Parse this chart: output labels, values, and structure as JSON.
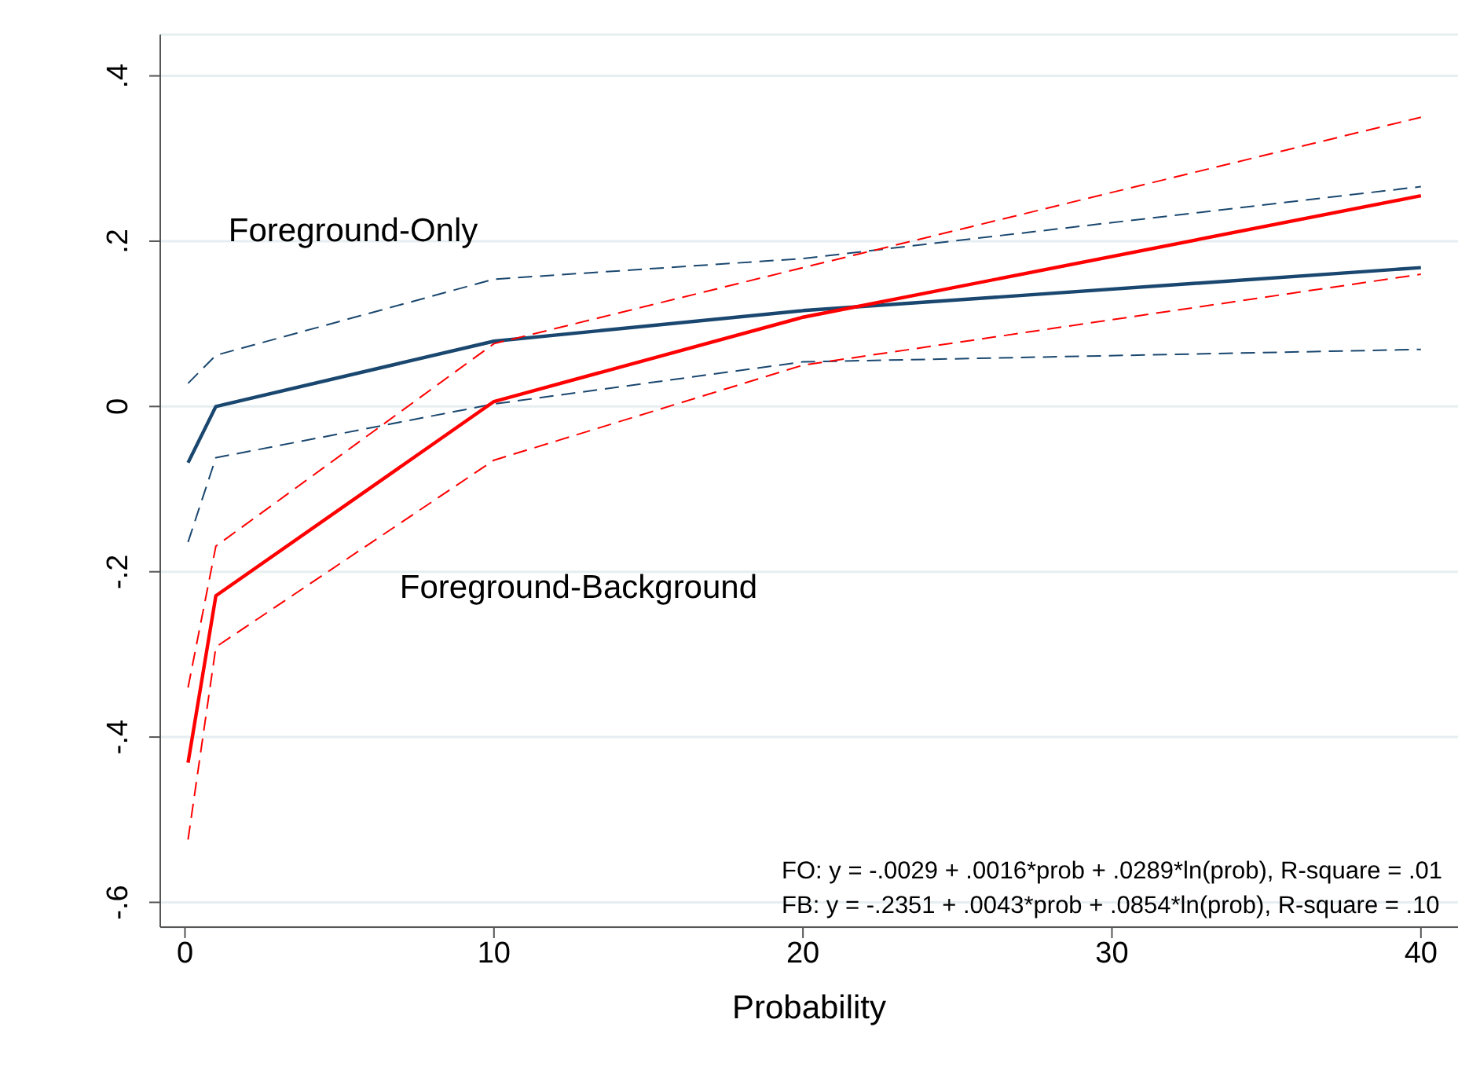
{
  "chart_data": {
    "type": "line",
    "xlabel": "Probability",
    "x": [
      0.1,
      1,
      10,
      20,
      40
    ],
    "series": [
      {
        "name": "Foreground-Only",
        "color": "#1a476f",
        "values": [
          -0.068,
          0,
          0.079,
          0.116,
          0.168
        ]
      },
      {
        "color": "#1a476f",
        "line_style": "dashed",
        "values": [
          -0.164,
          -0.062,
          0.003,
          0.054,
          0.069
        ]
      },
      {
        "color": "#1a476f",
        "line_style": "dashed",
        "values": [
          0.028,
          0.062,
          0.154,
          0.179,
          0.266
        ]
      },
      {
        "name": "Foreground-Background",
        "color": "#ff0000",
        "values": [
          -0.431,
          -0.229,
          0.006,
          0.108,
          0.255
        ]
      },
      {
        "color": "#ff0000",
        "line_style": "dashed",
        "values": [
          -0.524,
          -0.291,
          -0.065,
          0.05,
          0.16
        ]
      },
      {
        "color": "#ff0000",
        "line_style": "dashed",
        "values": [
          -0.34,
          -0.169,
          0.076,
          0.168,
          0.35
        ]
      }
    ],
    "xlim": [
      -0.8,
      41.2
    ],
    "xticks": [
      0,
      10,
      20,
      30,
      40
    ],
    "ylim": [
      -0.63,
      0.45
    ],
    "yticks": [
      {
        "value": -0.6,
        "label": "-.6"
      },
      {
        "value": -0.4,
        "label": "-.4"
      },
      {
        "value": -0.2,
        "label": "-.2"
      },
      {
        "value": 0,
        "label": "0"
      },
      {
        "value": 0.2,
        "label": ".2"
      },
      {
        "value": 0.4,
        "label": ".4"
      }
    ],
    "grid": "y",
    "marker": "none",
    "line_style": "solid",
    "annotations": [
      "FO: y = -.0029 + .0016*prob + .0289*ln(prob), R-square = .01",
      "FB: y = -.2351 + .0043*prob + .0854*ln(prob), R-square = .10"
    ]
  }
}
